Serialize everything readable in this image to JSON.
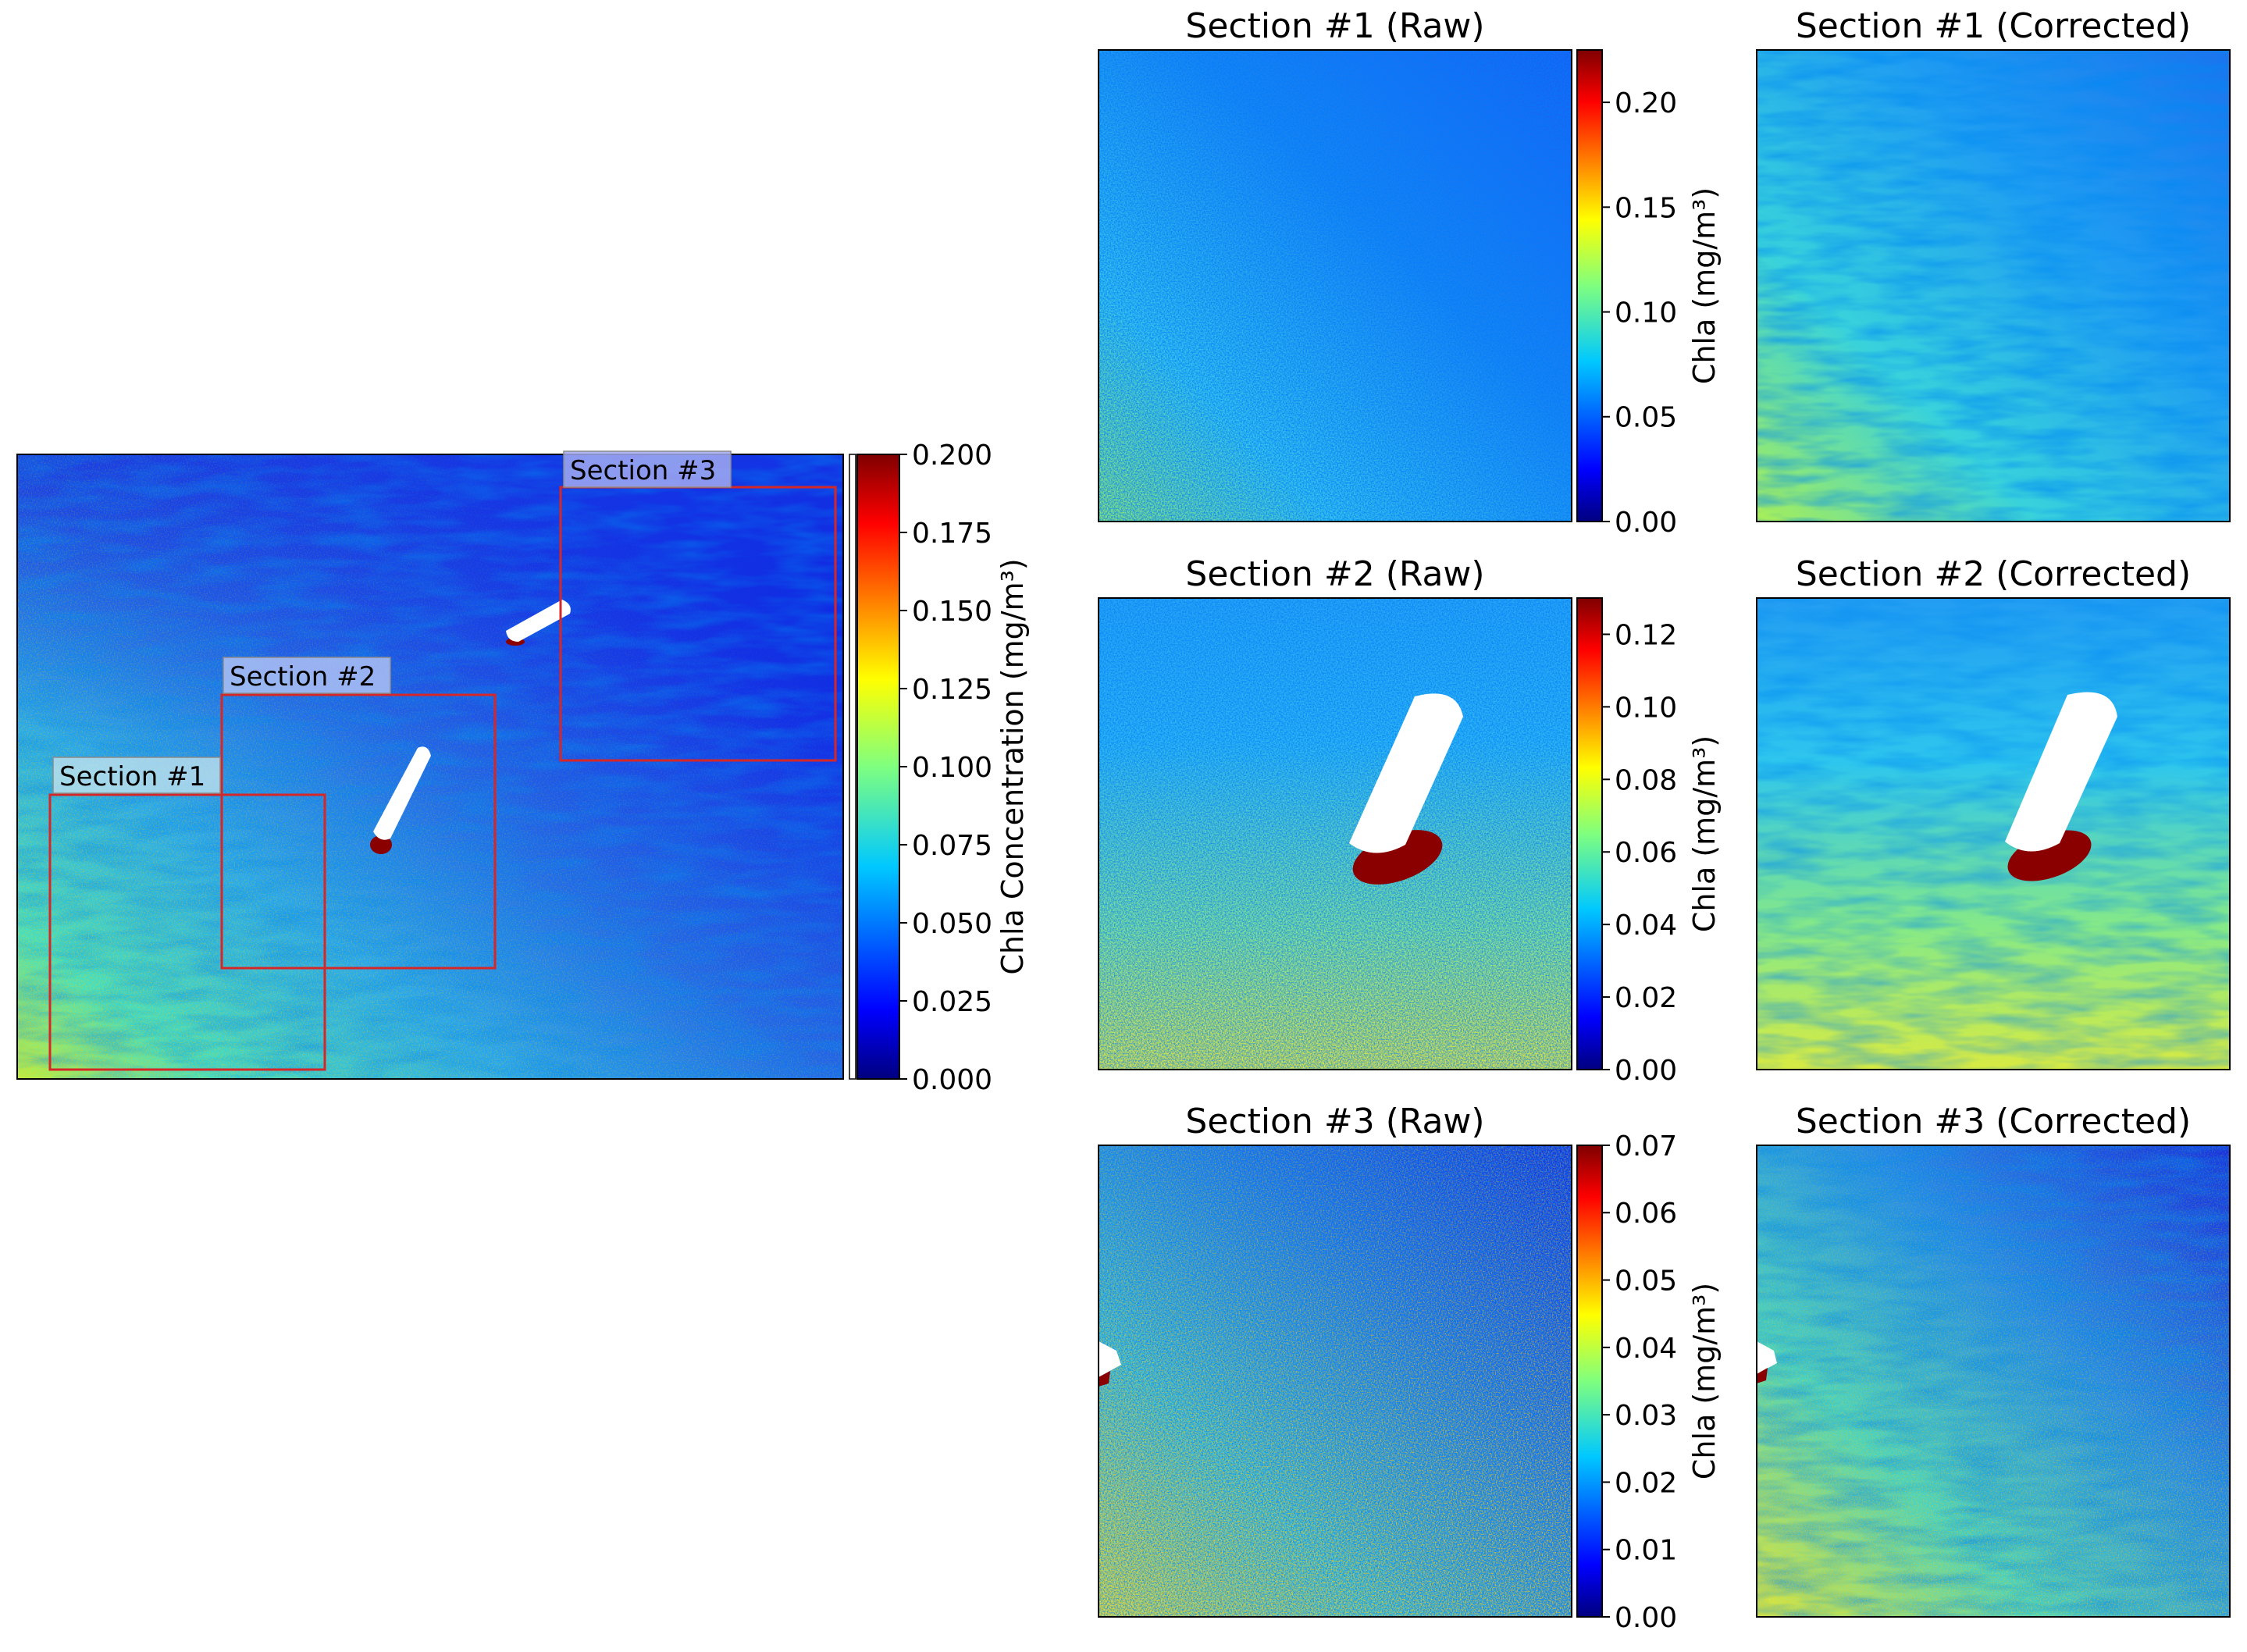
{
  "colors": {
    "jet": [
      "#00007f",
      "#0000ff",
      "#007fff",
      "#00ffff",
      "#7fff7f",
      "#ffff00",
      "#ff7f00",
      "#ff0000",
      "#7f0000"
    ],
    "section_box": "#d62728",
    "label_box": "#b7c6f5"
  },
  "chart_data": [
    {
      "type": "heatmap",
      "panel": "overview",
      "title": "",
      "colorbar": {
        "label": "Chla Concentration (mg/m³)",
        "range": [
          0.0,
          0.2
        ],
        "ticks": [
          "0.000",
          "0.025",
          "0.050",
          "0.075",
          "0.100",
          "0.125",
          "0.150",
          "0.175",
          "0.200"
        ]
      },
      "annotations": [
        "Section #1",
        "Section #2",
        "Section #3"
      ],
      "description": "Drone chlorophyll-a map; mostly low (blue) values increasing toward bottom-left (green/yellow), with two boats masked white"
    },
    {
      "type": "heatmap",
      "panel": "section-1-raw",
      "title": "Section #1 (Raw)",
      "colorbar": {
        "label": "Chla (mg/m³)",
        "range": [
          0.0,
          0.225
        ],
        "ticks": [
          "0.00",
          "0.05",
          "0.10",
          "0.15",
          "0.20"
        ]
      }
    },
    {
      "type": "heatmap",
      "panel": "section-1-corrected",
      "title": "Section #1 (Corrected)"
    },
    {
      "type": "heatmap",
      "panel": "section-2-raw",
      "title": "Section #2 (Raw)",
      "colorbar": {
        "label": "Chla (mg/m³)",
        "range": [
          0.0,
          0.13
        ],
        "ticks": [
          "0.00",
          "0.02",
          "0.04",
          "0.06",
          "0.08",
          "0.10",
          "0.12"
        ]
      }
    },
    {
      "type": "heatmap",
      "panel": "section-2-corrected",
      "title": "Section #2 (Corrected)"
    },
    {
      "type": "heatmap",
      "panel": "section-3-raw",
      "title": "Section #3 (Raw)",
      "colorbar": {
        "label": "Chla (mg/m³)",
        "range": [
          0.0,
          0.07
        ],
        "ticks": [
          "0.00",
          "0.01",
          "0.02",
          "0.03",
          "0.04",
          "0.05",
          "0.06",
          "0.07"
        ]
      }
    },
    {
      "type": "heatmap",
      "panel": "section-3-corrected",
      "title": "Section #3 (Corrected)"
    }
  ]
}
